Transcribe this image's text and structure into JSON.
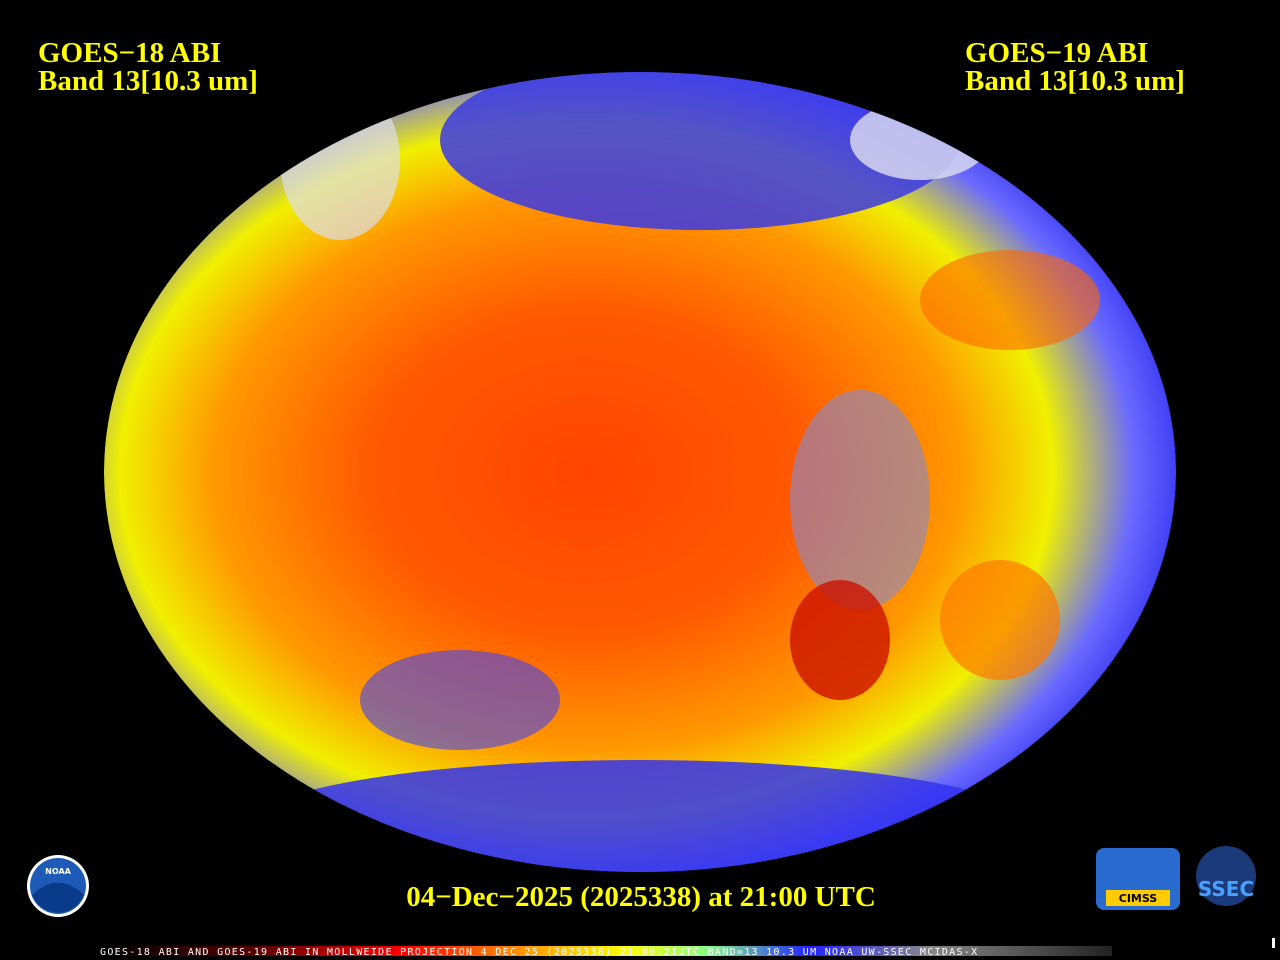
{
  "header_left": {
    "line1": "GOES−18 ABI",
    "line2": "Band 13[10.3 um]"
  },
  "header_right": {
    "line1": "GOES−19 ABI",
    "line2": "Band 13[10.3 um]"
  },
  "timestamp": "04−Dec−2025 (2025338) at 21:00 UTC",
  "logos": {
    "noaa": "NOAA",
    "cimss": "CIMSS",
    "ssec": "SSEC"
  },
  "footer": "GOES-18 ABI AND GOES-19 ABI IN MOLLWEIDE PROJECTION 4 DEC 25 (2025338) 21:00:21UTC BAND=13 10.3 UM NOAA UW-SSEC MCIDAS-X"
}
